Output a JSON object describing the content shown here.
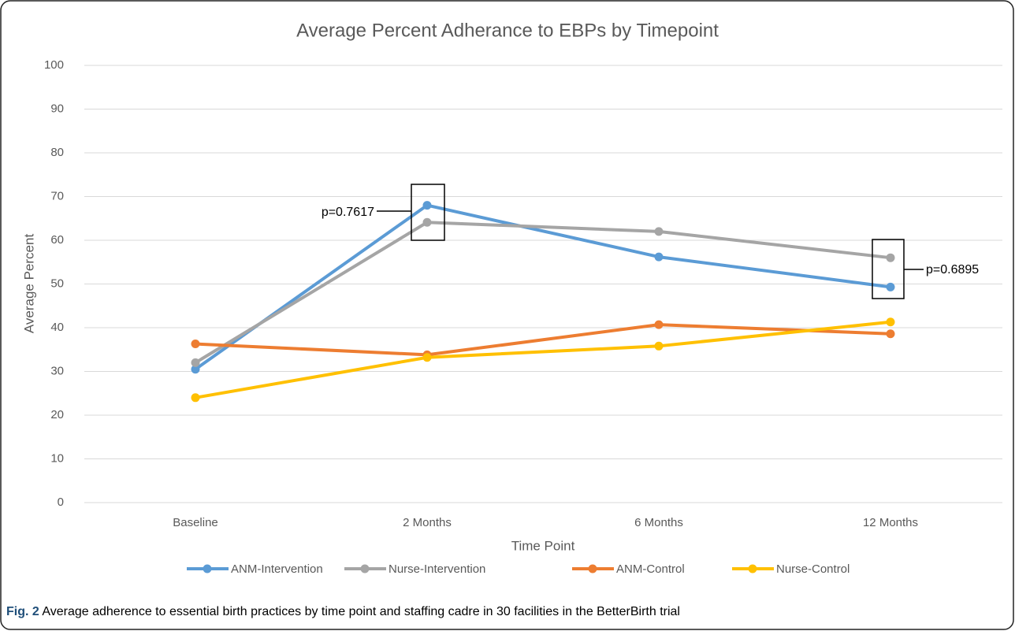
{
  "chart_data": {
    "type": "line",
    "title": "Average Percent Adherance to EBPs by Timepoint",
    "x_label": "Time Point",
    "y_label": "Average Percent",
    "categories": [
      "Baseline",
      "2 Months",
      "6 Months",
      "12 Months"
    ],
    "series": [
      {
        "name": "ANM-Intervention",
        "color": "#5b9bd5",
        "values": [
          30.5,
          68,
          56.2,
          49.3
        ]
      },
      {
        "name": "Nurse-Intervention",
        "color": "#a5a5a5",
        "values": [
          32,
          64.1,
          62,
          56
        ]
      },
      {
        "name": "ANM-Control",
        "color": "#ed7d31",
        "values": [
          36.3,
          33.8,
          40.7,
          38.6
        ]
      },
      {
        "name": "Nurse-Control",
        "color": "#ffc000",
        "values": [
          24,
          33.2,
          35.8,
          41.3
        ]
      }
    ],
    "ylim": [
      0,
      100
    ],
    "yticks": [
      0,
      10,
      20,
      30,
      40,
      50,
      60,
      70,
      80,
      90,
      100
    ],
    "grid": true,
    "legend": "bottom",
    "annotations": [
      "p=0.7617",
      "p=0.6895"
    ],
    "caption_label": "Fig. 2",
    "caption": "Average adherence to essential birth practices by time point and staffing cadre in 30 facilities in the BetterBirth trial"
  }
}
